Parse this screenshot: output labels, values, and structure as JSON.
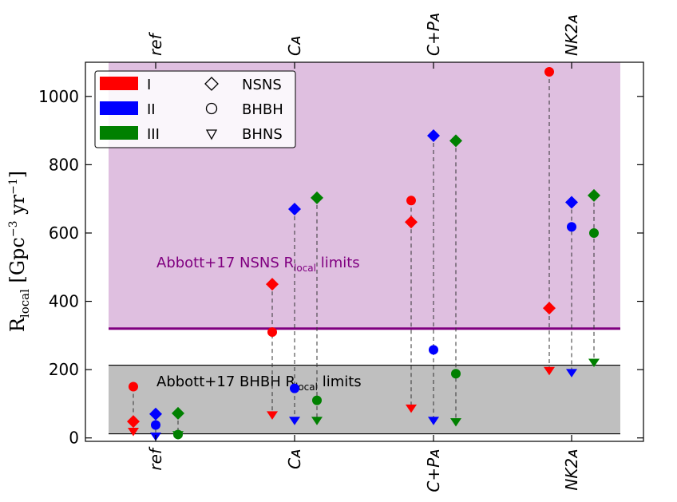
{
  "chart_data": {
    "type": "scatter",
    "categories": [
      "ref",
      "CA",
      "C+PA",
      "NK2A"
    ],
    "category_labels": [
      "ref",
      "Cᴀ",
      "C+Pᴀ",
      "NK2ᴀ"
    ],
    "ylabel": "R_local [Gpc⁻³ yr⁻¹]",
    "ylabel_main": "R",
    "ylabel_sub": "local",
    "ylabel_units": "[Gpc",
    "ylabel_exp1": "−3",
    "ylabel_yr": " yr",
    "ylabel_exp2": "−1",
    "ylabel_close": "]",
    "ylim": [
      -10,
      1100
    ],
    "yticks": [
      0,
      200,
      400,
      600,
      800,
      1000
    ],
    "ytick_labels": [
      "0",
      "200",
      "400",
      "600",
      "800",
      "1000"
    ],
    "series": [
      {
        "name": "I",
        "color": "#ff0000",
        "NSNS": [
          48,
          450,
          632,
          380
        ],
        "BHBH": [
          150,
          310,
          695,
          1072
        ],
        "BHNS": [
          20,
          68,
          88,
          198
        ]
      },
      {
        "name": "II",
        "color": "#0000ff",
        "NSNS": [
          70,
          670,
          885,
          690
        ],
        "BHBH": [
          38,
          145,
          258,
          618
        ],
        "BHNS": [
          6,
          52,
          52,
          192
        ]
      },
      {
        "name": "III",
        "color": "#008000",
        "NSNS": [
          72,
          703,
          870,
          710
        ],
        "BHBH": [
          10,
          110,
          188,
          600
        ],
        "BHNS": [
          10,
          52,
          48,
          222
        ]
      }
    ],
    "marker_types": [
      {
        "name": "NSNS",
        "marker": "diamond"
      },
      {
        "name": "BHBH",
        "marker": "circle"
      },
      {
        "name": "BHNS",
        "marker": "triangle-down"
      }
    ],
    "bands": [
      {
        "label_main": "Abbott+17 NSNS R",
        "label_sub": "local",
        "label_tail": " limits",
        "ymin": 320,
        "ymax": 1100,
        "fill": "#dfbfe0",
        "line_color": "#800080",
        "text_color": "#800080"
      },
      {
        "label_main": "Abbott+17 BHBH R",
        "label_sub": "local",
        "label_tail": " limits",
        "ymin": 12,
        "ymax": 213,
        "fill": "#bfbfbf",
        "line_color": "#000000",
        "text_color": "#000000"
      }
    ],
    "legend_position": "top-left",
    "grid": false
  }
}
